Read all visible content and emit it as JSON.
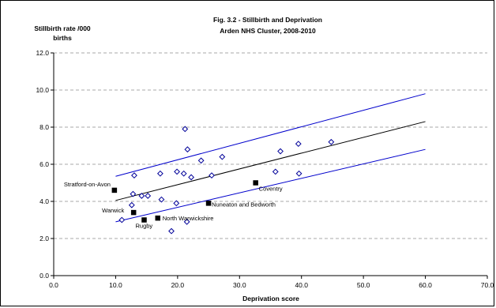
{
  "chart_data": {
    "type": "scatter",
    "title": "Fig. 3.2 - Stillbirth and Deprivation",
    "subtitle": "Arden NHS Cluster, 2008-2010",
    "ylabel_line1": "Stillbirth rate /000",
    "ylabel_line2": "births",
    "xlabel": "Deprivation score",
    "xlim": [
      0,
      70
    ],
    "ylim": [
      0,
      12
    ],
    "x_ticks": [
      "0.0",
      "10.0",
      "20.0",
      "30.0",
      "40.0",
      "50.0",
      "60.0",
      "70.0"
    ],
    "y_ticks": [
      "0.0",
      "2.0",
      "4.0",
      "6.0",
      "8.0",
      "10.0",
      "12.0"
    ],
    "grid": "horizontal-dashed",
    "series": [
      {
        "marker": "open-diamond",
        "color": "#000099",
        "points": [
          [
            11.0,
            3.0
          ],
          [
            12.6,
            3.8
          ],
          [
            12.8,
            4.4
          ],
          [
            13.0,
            5.4
          ],
          [
            14.2,
            4.3
          ],
          [
            15.2,
            4.3
          ],
          [
            17.2,
            5.5
          ],
          [
            17.4,
            4.1
          ],
          [
            19.0,
            2.4
          ],
          [
            19.8,
            3.9
          ],
          [
            19.9,
            5.6
          ],
          [
            21.0,
            5.5
          ],
          [
            21.2,
            7.9
          ],
          [
            21.5,
            2.9
          ],
          [
            21.6,
            6.8
          ],
          [
            22.2,
            5.3
          ],
          [
            23.8,
            6.2
          ],
          [
            25.5,
            5.4
          ],
          [
            27.2,
            6.4
          ],
          [
            35.8,
            5.6
          ],
          [
            36.6,
            6.7
          ],
          [
            39.5,
            7.1
          ],
          [
            39.6,
            5.5
          ],
          [
            44.8,
            7.2
          ]
        ]
      },
      {
        "marker": "filled-square",
        "color": "#000000",
        "points": [
          {
            "x": 9.8,
            "y": 4.6,
            "label": "Stratford-on-Avon"
          },
          {
            "x": 12.9,
            "y": 3.4,
            "label": "Warwick"
          },
          {
            "x": 14.6,
            "y": 3.0,
            "label": "Rugby"
          },
          {
            "x": 16.8,
            "y": 3.1,
            "label": "North Warwickshire"
          },
          {
            "x": 25.0,
            "y": 3.9,
            "label": "Nuneaton and Bedworth"
          },
          {
            "x": 32.6,
            "y": 5.0,
            "label": "Coventry"
          }
        ]
      }
    ],
    "lines": [
      {
        "kind": "upper-limit",
        "color": "#0000cc",
        "x": [
          10,
          60
        ],
        "y": [
          5.35,
          9.8
        ]
      },
      {
        "kind": "trend",
        "color": "#000000",
        "x": [
          10,
          60
        ],
        "y": [
          4.05,
          8.3
        ]
      },
      {
        "kind": "lower-limit",
        "color": "#0000cc",
        "x": [
          10,
          60
        ],
        "y": [
          2.9,
          6.8
        ]
      }
    ]
  }
}
